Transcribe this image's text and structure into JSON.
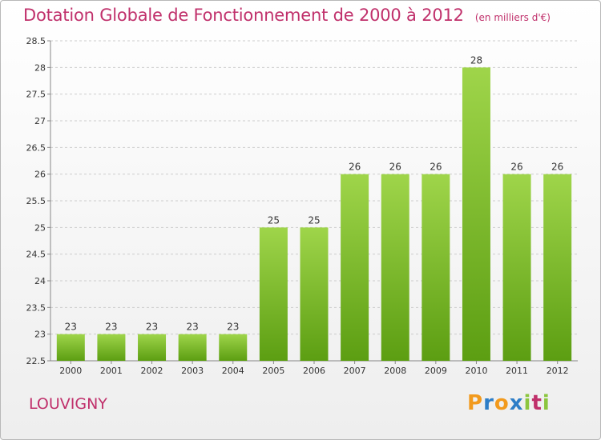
{
  "header": {
    "title": "Dotation Globale de Fonctionnement de 2000 à 2012",
    "unit": "(en milliers d'€)"
  },
  "commune": "LOUVIGNY",
  "logo": {
    "text": "Proxiti",
    "letters": [
      "P",
      "r",
      "o",
      "x",
      "i",
      "t",
      "i"
    ],
    "colors": [
      "#f29a1d",
      "#2e7ec7",
      "#f29a1d",
      "#2e7ec7",
      "#8cc63f",
      "#c0306b",
      "#8cc63f"
    ]
  },
  "colors": {
    "bar_light": "#9fd54a",
    "bar_dark": "#5c9e12",
    "title": "#c0306b",
    "grid": "#cccccc"
  },
  "chart_data": {
    "type": "bar",
    "title": "Dotation Globale de Fonctionnement de 2000 à 2012",
    "xlabel": "",
    "ylabel": "",
    "categories": [
      "2000",
      "2001",
      "2002",
      "2003",
      "2004",
      "2005",
      "2006",
      "2007",
      "2008",
      "2009",
      "2010",
      "2011",
      "2012"
    ],
    "values": [
      23,
      23,
      23,
      23,
      23,
      25,
      25,
      26,
      26,
      26,
      28,
      26,
      26
    ],
    "data_labels": [
      "23",
      "23",
      "23",
      "23",
      "23",
      "25",
      "25",
      "26",
      "26",
      "26",
      "28",
      "26",
      "26"
    ],
    "ylim": [
      22.5,
      28.5
    ],
    "yticks": [
      22.5,
      23,
      23.5,
      24,
      24.5,
      25,
      25.5,
      26,
      26.5,
      27,
      27.5,
      28,
      28.5
    ],
    "ytick_labels": [
      "22.5",
      "23",
      "23.5",
      "24",
      "24.5",
      "25",
      "25.5",
      "26",
      "26.5",
      "27",
      "27.5",
      "28",
      "28.5"
    ],
    "grid": true,
    "legend": "none"
  }
}
